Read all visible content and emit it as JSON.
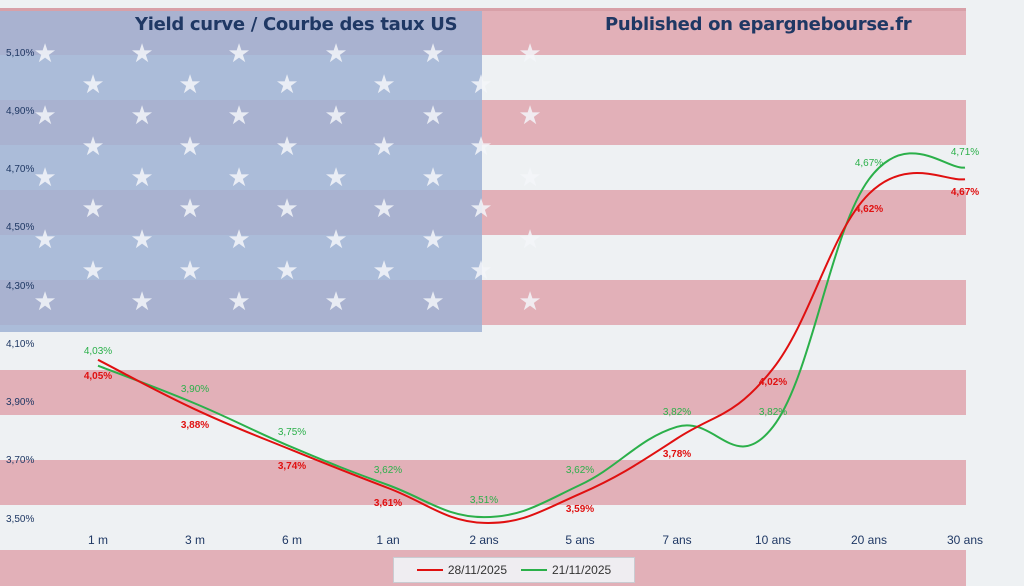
{
  "titles": {
    "left": "Yield curve / Courbe des taux US",
    "right": "Published on epargnebourse.fr"
  },
  "colors": {
    "series_28": "#e01010",
    "series_21": "#2bb04a",
    "axis_text": "#1f3864",
    "flag_red": "#d97a86",
    "flag_blue": "#8ea4c8",
    "flag_white": "#eef1f3"
  },
  "y_ticks": [
    "5,10%",
    "4,90%",
    "4,70%",
    "4,50%",
    "4,30%",
    "4,10%",
    "3,90%",
    "3,70%",
    "3,50%"
  ],
  "x_ticks": [
    "1 m",
    "3 m",
    "6 m",
    "1 an",
    "2 ans",
    "5 ans",
    "7 ans",
    "10 ans",
    "20 ans",
    "30 ans"
  ],
  "legend": {
    "series_28": "28/11/2025",
    "series_21": "21/11/2025"
  },
  "chart_data": {
    "type": "line",
    "title": "Yield curve / Courbe des taux US",
    "subtitle": "Published on epargnebourse.fr",
    "xlabel": "",
    "ylabel": "",
    "categories": [
      "1 m",
      "3 m",
      "6 m",
      "1 an",
      "2 ans",
      "5 ans",
      "7 ans",
      "10 ans",
      "20 ans",
      "30 ans"
    ],
    "ylim": [
      3.5,
      5.1
    ],
    "y_tick_step": 0.2,
    "grid": false,
    "smooth": true,
    "legend_position": "bottom",
    "background": "US flag image",
    "series": [
      {
        "name": "28/11/2025",
        "color": "#e01010",
        "values": [
          4.05,
          3.88,
          3.74,
          3.61,
          3.49,
          3.59,
          3.78,
          4.02,
          4.62,
          4.67
        ],
        "labels": [
          "4,05%",
          "3,88%",
          "3,74%",
          "3,61%",
          "",
          "3,59%",
          "3,78%",
          "4,02%",
          "4,62%",
          "4,67%"
        ]
      },
      {
        "name": "21/11/2025",
        "color": "#2bb04a",
        "values": [
          4.03,
          3.9,
          3.75,
          3.62,
          3.51,
          3.62,
          3.82,
          3.82,
          4.67,
          4.71
        ],
        "labels": [
          "4,03%",
          "3,90%",
          "3,75%",
          "3,62%",
          "3,51%",
          "3,62%",
          "3,82%",
          "3,82%",
          "4,67%",
          "4,71%"
        ]
      }
    ]
  }
}
